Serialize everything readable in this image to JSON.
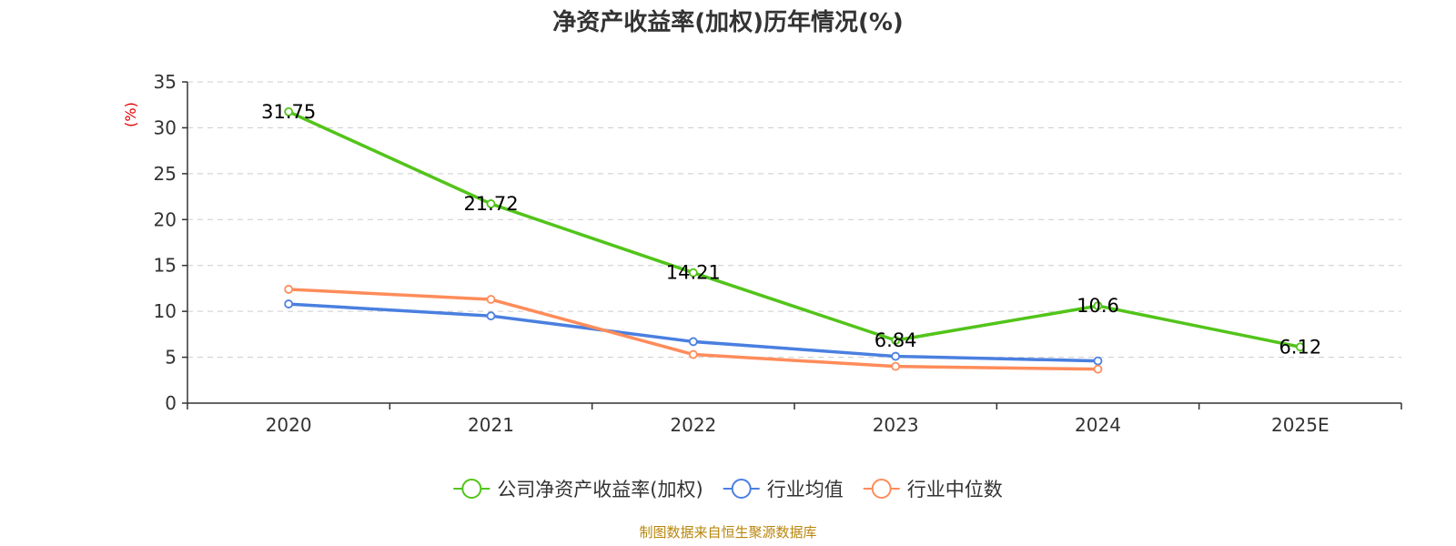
{
  "chart_data": {
    "type": "line",
    "title": "净资产收益率(加权)历年情况(%)",
    "ylabel": "(%)",
    "xlabel": "",
    "categories": [
      "2020",
      "2021",
      "2022",
      "2023",
      "2024",
      "2025E"
    ],
    "ylim": [
      0,
      35
    ],
    "yticks": [
      0,
      5,
      10,
      15,
      20,
      25,
      30,
      35
    ],
    "grid": true,
    "legend_position": "bottom-center",
    "series": [
      {
        "name": "公司净资产收益率(加权)",
        "color": "#52c41a",
        "values": [
          31.75,
          21.72,
          14.21,
          6.84,
          10.6,
          6.12
        ],
        "labels": [
          "31.75",
          "21.72",
          "14.21",
          "6.84",
          "10.6",
          "6.12"
        ]
      },
      {
        "name": "行业均值",
        "color": "#4a7fe0",
        "values": [
          10.8,
          9.5,
          6.7,
          5.1,
          4.6,
          null
        ]
      },
      {
        "name": "行业中位数",
        "color": "#ff8c5a",
        "values": [
          12.4,
          11.3,
          5.3,
          4.0,
          3.7,
          null
        ]
      }
    ]
  },
  "footer": {
    "source": "制图数据来自恒生聚源数据库"
  }
}
